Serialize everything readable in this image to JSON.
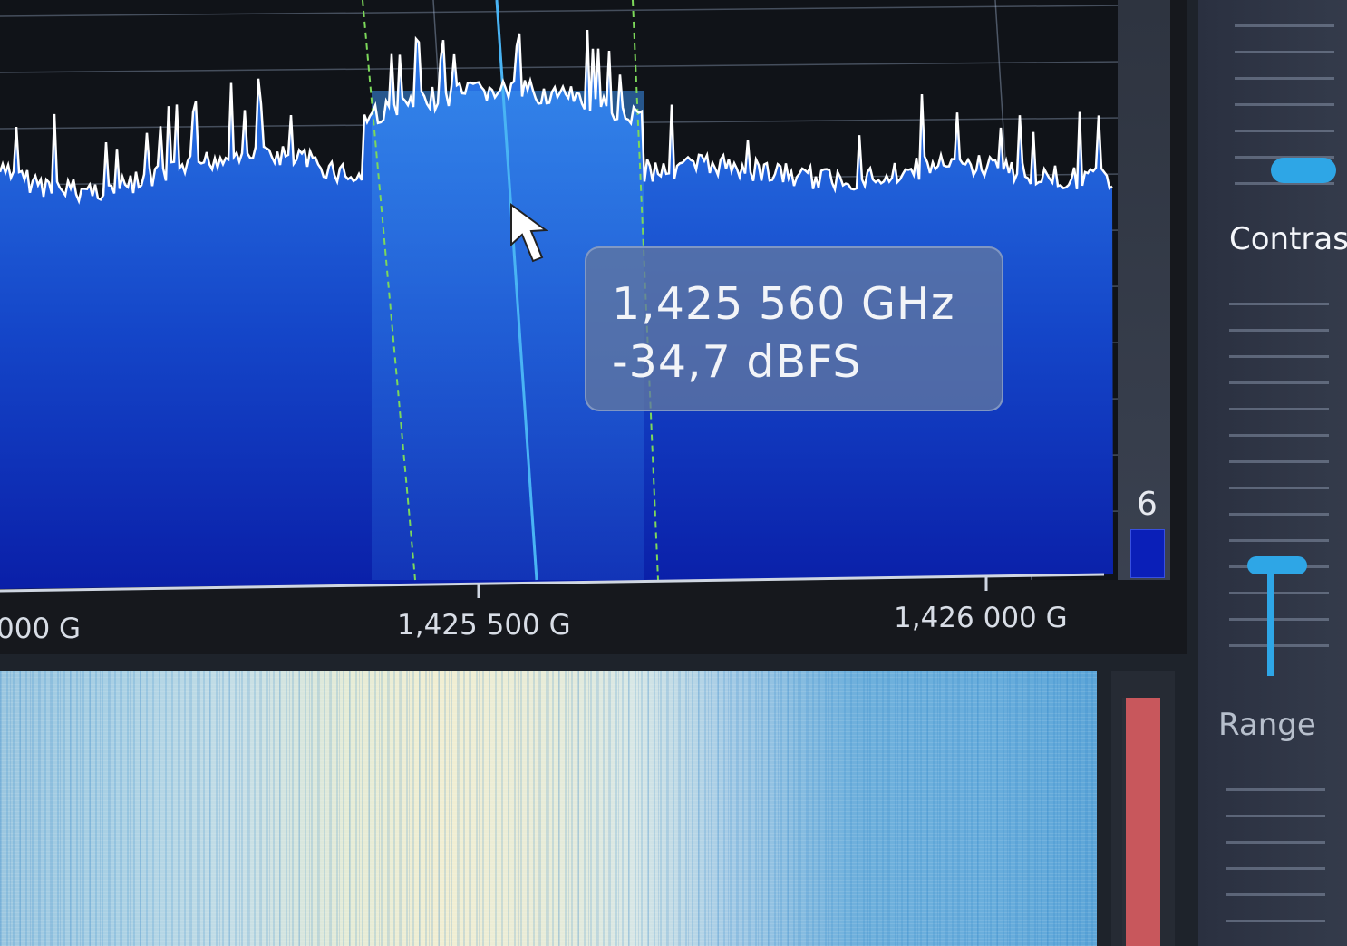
{
  "tooltip": {
    "frequency": "1,425 560 GHz",
    "level": "-34,7 dBFS"
  },
  "frequency_axis": {
    "ticks": [
      "000 G",
      "1,425 500 G",
      "1,426 000 G"
    ]
  },
  "level_meter": {
    "value": "6"
  },
  "controls": {
    "contrast_label": "Contras",
    "range_label": "Range"
  },
  "colors": {
    "spectrum_fill": "#1a5fd6",
    "trace": "#ffffff",
    "accent": "#2ea6e6",
    "filter_edge": "#7cd85a"
  }
}
